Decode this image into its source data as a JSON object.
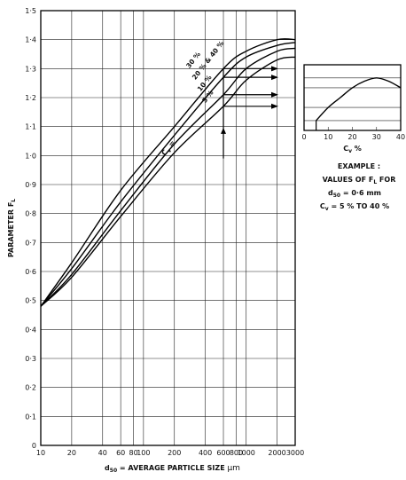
{
  "chart_data": [
    {
      "type": "line",
      "x_scale": "log",
      "xlim": [
        10,
        3000
      ],
      "ylim": [
        0,
        1.5
      ],
      "xlabel_prefix": "d",
      "xlabel_sub": "50",
      "xlabel_rest": " = AVERAGE PARTICLE SIZE ",
      "xlabel_unit": "μm",
      "ylabel_main": "PARAMETER F",
      "ylabel_sub": "L",
      "x_ticks": [
        10,
        20,
        40,
        60,
        80,
        100,
        200,
        400,
        600,
        800,
        1000,
        2000,
        3000
      ],
      "x_tick_labels": [
        "10",
        "20",
        "40",
        "60",
        "80",
        "100",
        "200",
        "400",
        "600",
        "800",
        "1000",
        "2000",
        "3000"
      ],
      "y_ticks": [
        0,
        0.1,
        0.2,
        0.3,
        0.4,
        0.5,
        0.6,
        0.7,
        0.8,
        0.9,
        1.0,
        1.1,
        1.2,
        1.3,
        1.4,
        1.5
      ],
      "y_tick_labels": [
        "0",
        "0·1",
        "0·2",
        "0·3",
        "0·4",
        "0·5",
        "0·6",
        "0·7",
        "0·8",
        "0·9",
        "1·0",
        "1·1",
        "1·2",
        "1·3",
        "1·4",
        "1·5"
      ],
      "grid": true,
      "series": [
        {
          "name": "30 %",
          "x": [
            10,
            20,
            60,
            200,
            600,
            1000,
            2000,
            3000
          ],
          "y": [
            0.48,
            0.63,
            0.88,
            1.1,
            1.3,
            1.36,
            1.4,
            1.4
          ]
        },
        {
          "name": "20 % & 40 %",
          "x": [
            10,
            20,
            60,
            200,
            600,
            1000,
            2000,
            3000
          ],
          "y": [
            0.48,
            0.61,
            0.84,
            1.07,
            1.27,
            1.34,
            1.38,
            1.39
          ]
        },
        {
          "name": "10 %",
          "x": [
            10,
            20,
            60,
            200,
            600,
            1000,
            2000,
            3000
          ],
          "y": [
            0.48,
            0.59,
            0.81,
            1.04,
            1.21,
            1.3,
            1.36,
            1.37
          ]
        },
        {
          "name": "5 %",
          "x": [
            10,
            20,
            60,
            200,
            600,
            1000,
            2000,
            3000
          ],
          "y": [
            0.48,
            0.58,
            0.79,
            1.01,
            1.17,
            1.26,
            1.33,
            1.34
          ]
        }
      ],
      "series_label_prefix": "C",
      "series_label_sub": "v",
      "series_label_eq": " = ",
      "example_x": 600,
      "example_values": [
        1.3,
        1.27,
        1.21,
        1.17
      ]
    },
    {
      "type": "line",
      "xlim": [
        0,
        40
      ],
      "xlabel_main": "C",
      "xlabel_sub": "v",
      "xlabel_rest": " %",
      "x_ticks": [
        0,
        10,
        20,
        30,
        40
      ],
      "x_tick_labels": [
        "0",
        "10",
        "20",
        "30",
        "40"
      ],
      "series": [
        {
          "x": [
            5,
            10,
            15,
            20,
            25,
            30,
            35,
            40
          ],
          "y": [
            1.17,
            1.21,
            1.24,
            1.27,
            1.29,
            1.3,
            1.29,
            1.27
          ]
        }
      ],
      "ylim": [
        1.14,
        1.34
      ],
      "ref_levels": [
        1.17,
        1.21,
        1.27,
        1.3
      ]
    }
  ],
  "example": {
    "line1": "EXAMPLE :",
    "line2_main": "VALUES OF F",
    "line2_sub": "L",
    "line2_rest": " FOR",
    "line3_main": "d",
    "line3_sub": "50",
    "line3_rest": " = 0·6 mm",
    "line4_main": "C",
    "line4_sub": "v",
    "line4_rest": " = 5 % TO 40 %"
  }
}
